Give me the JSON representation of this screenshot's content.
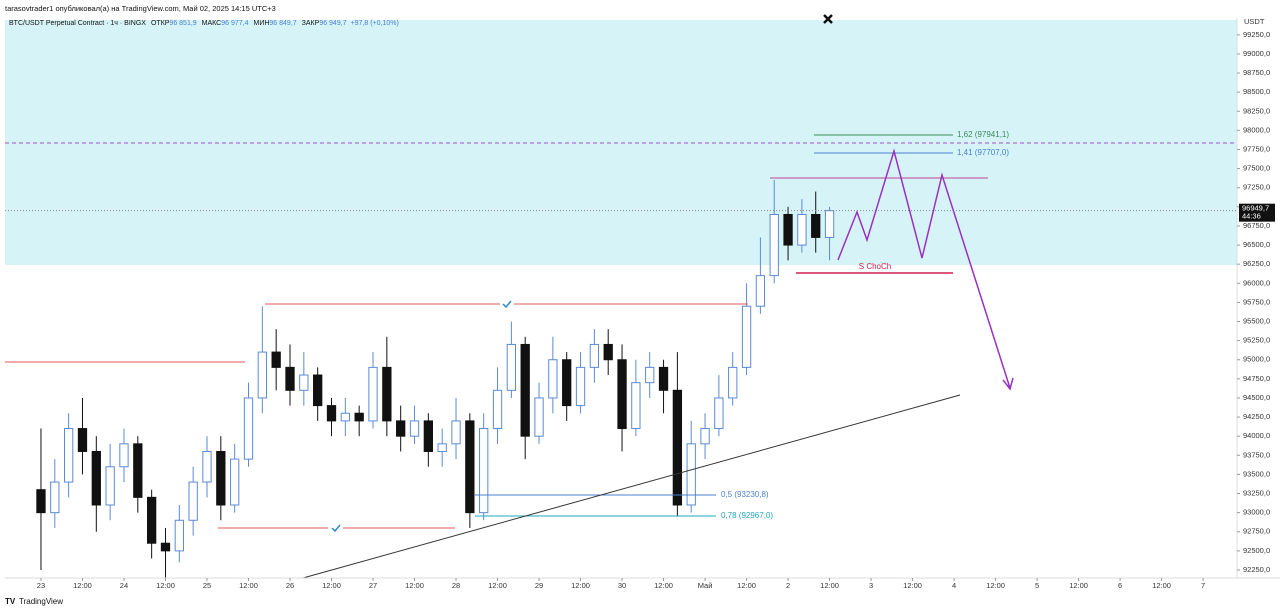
{
  "header": {
    "attribution": "tarasovtrader1 опубликовал(а) на TradingView.com, Май 02, 2025 14:15 UTC+3",
    "symbol": "BTC/USDT Perpetual Contract · 1ч · BINGX",
    "legend": [
      {
        "label": "ОТКР",
        "value": "96 851,9"
      },
      {
        "label": "МАКС",
        "value": "96 977,4"
      },
      {
        "label": "МИН",
        "value": "96 849,7"
      },
      {
        "label": "ЗАКР",
        "value": "96 949,7"
      }
    ],
    "change": "+97,8 (+0,10%)"
  },
  "chart_data": {
    "type": "candlestick",
    "y_axis_label": "USDT",
    "up_color": "#5b8ad6",
    "down_color": "#111111",
    "x": [
      0,
      4,
      8,
      12,
      16,
      20,
      24,
      28,
      32,
      36,
      40,
      44,
      48,
      52,
      56,
      60,
      64,
      68,
      72,
      76,
      80,
      84,
      88,
      92,
      96,
      100,
      104,
      108,
      112,
      116,
      120,
      124,
      128,
      132,
      136,
      140,
      144,
      148,
      152,
      156,
      160,
      164,
      168,
      172,
      176,
      180,
      184,
      188,
      192,
      196,
      200,
      204,
      208,
      212,
      216,
      220,
      224,
      228
    ],
    "open": [
      93300,
      93000,
      93400,
      94100,
      93800,
      93100,
      93600,
      93900,
      93200,
      92600,
      92500,
      92900,
      93400,
      93800,
      93100,
      93700,
      94500,
      95100,
      94900,
      94600,
      94800,
      94400,
      94200,
      94300,
      94200,
      94900,
      94200,
      94000,
      94200,
      93800,
      93900,
      94200,
      93000,
      94100,
      94600,
      95200,
      94000,
      94500,
      95000,
      94400,
      94900,
      95200,
      95000,
      94100,
      94700,
      94900,
      94600,
      93100,
      93900,
      94100,
      94500,
      94900,
      95700,
      96100,
      96900,
      96500,
      96900,
      96600
    ],
    "high": [
      94100,
      93700,
      94300,
      94500,
      94000,
      93900,
      94100,
      94000,
      93300,
      92800,
      93100,
      93600,
      94000,
      94000,
      93900,
      94700,
      95700,
      95400,
      95200,
      95100,
      94900,
      94500,
      94500,
      94400,
      95100,
      95300,
      94400,
      94400,
      94300,
      94100,
      94500,
      94300,
      94300,
      94900,
      95500,
      95300,
      94700,
      95300,
      95100,
      95100,
      95400,
      95400,
      95200,
      95000,
      95100,
      95000,
      95100,
      94200,
      94300,
      94800,
      95100,
      96000,
      96600,
      97350,
      97000,
      97100,
      97200,
      97000
    ],
    "low": [
      92250,
      92800,
      93200,
      93500,
      92750,
      92900,
      93400,
      93000,
      92400,
      92150,
      92350,
      92700,
      93200,
      92900,
      93000,
      93600,
      94300,
      94600,
      94400,
      94400,
      94200,
      94000,
      94000,
      94000,
      94100,
      94000,
      93800,
      93900,
      93600,
      93600,
      93700,
      92800,
      92900,
      93900,
      94500,
      93700,
      93900,
      94300,
      94200,
      94300,
      94700,
      94800,
      93800,
      94000,
      94500,
      94300,
      92950,
      93000,
      93700,
      94000,
      94400,
      94800,
      95600,
      96000,
      96300,
      96400,
      96400,
      96300
    ],
    "close": [
      93000,
      93400,
      94100,
      93800,
      93100,
      93600,
      93900,
      93200,
      92600,
      92500,
      92900,
      93400,
      93800,
      93100,
      93700,
      94500,
      95100,
      94900,
      94600,
      94800,
      94400,
      94200,
      94300,
      94200,
      94900,
      94200,
      94000,
      94200,
      93800,
      93900,
      94200,
      93000,
      94100,
      94600,
      95200,
      94000,
      94500,
      95000,
      94400,
      94900,
      95200,
      95000,
      94100,
      94700,
      94900,
      94600,
      93100,
      93900,
      94100,
      94500,
      94900,
      95700,
      96100,
      96900,
      96500,
      96900,
      96600,
      96949.7
    ],
    "last_price_label": "96949,7",
    "countdown": "44:36",
    "xlim": [
      -10.4,
      345.8
    ],
    "xticks": [
      {
        "value": 0,
        "label": "23"
      },
      {
        "value": 12,
        "label": "12:00"
      },
      {
        "value": 24,
        "label": "24"
      },
      {
        "value": 36,
        "label": "12:00"
      },
      {
        "value": 48,
        "label": "25"
      },
      {
        "value": 60,
        "label": "12:00"
      },
      {
        "value": 72,
        "label": "26"
      },
      {
        "value": 84,
        "label": "12:00"
      },
      {
        "value": 96,
        "label": "27"
      },
      {
        "value": 108,
        "label": "12:00"
      },
      {
        "value": 120,
        "label": "28"
      },
      {
        "value": 132,
        "label": "12:00"
      },
      {
        "value": 144,
        "label": "29"
      },
      {
        "value": 156,
        "label": "12:00"
      },
      {
        "value": 168,
        "label": "30"
      },
      {
        "value": 180,
        "label": "12:00"
      },
      {
        "value": 192,
        "label": "Май"
      },
      {
        "value": 204,
        "label": "12:00"
      },
      {
        "value": 216,
        "label": "2"
      },
      {
        "value": 228,
        "label": "12:00"
      },
      {
        "value": 240,
        "label": "3"
      },
      {
        "value": 252,
        "label": "12:00"
      },
      {
        "value": 264,
        "label": "4"
      },
      {
        "value": 276,
        "label": "12:00"
      },
      {
        "value": 288,
        "label": "5"
      },
      {
        "value": 300,
        "label": "12:00"
      },
      {
        "value": 312,
        "label": "6"
      },
      {
        "value": 324,
        "label": "12:00"
      },
      {
        "value": 336,
        "label": "7"
      }
    ],
    "ylim": [
      92145,
      99470
    ],
    "yticks": [
      {
        "value": 92250,
        "label": "92250,0"
      },
      {
        "value": 92500,
        "label": "92500,0"
      },
      {
        "value": 92750,
        "label": "92750,0"
      },
      {
        "value": 93000,
        "label": "93000,0"
      },
      {
        "value": 93250,
        "label": "93250,0"
      },
      {
        "value": 93500,
        "label": "93500,0"
      },
      {
        "value": 93750,
        "label": "93750,0"
      },
      {
        "value": 94000,
        "label": "94000,0"
      },
      {
        "value": 94250,
        "label": "94250,0"
      },
      {
        "value": 94500,
        "label": "94500,0"
      },
      {
        "value": 94750,
        "label": "94750,0"
      },
      {
        "value": 95000,
        "label": "95000,0"
      },
      {
        "value": 95250,
        "label": "95250,0"
      },
      {
        "value": 95500,
        "label": "95500,0"
      },
      {
        "value": 95750,
        "label": "95750,0"
      },
      {
        "value": 96000,
        "label": "96000,0"
      },
      {
        "value": 96250,
        "label": "96250,0"
      },
      {
        "value": 96500,
        "label": "96500,0"
      },
      {
        "value": 96750,
        "label": "96750,0"
      },
      {
        "value": 97000,
        "label": "97000,0"
      },
      {
        "value": 97250,
        "label": "97250,0"
      },
      {
        "value": 97500,
        "label": "97500,0"
      },
      {
        "value": 97750,
        "label": "97750,0"
      },
      {
        "value": 98000,
        "label": "98000,0"
      },
      {
        "value": 98250,
        "label": "98250,0"
      },
      {
        "value": 98500,
        "label": "98500,0"
      },
      {
        "value": 98750,
        "label": "98750,0"
      },
      {
        "value": 99000,
        "label": "99000,0"
      },
      {
        "value": 99250,
        "label": "99250,0"
      }
    ]
  },
  "annotations": {
    "fib_162": "1,62 (97941,1)",
    "fib_141": "1,41 (97707,0)",
    "fib_05": "0,5 (93230,8)",
    "fib_078": "0,78 (92967,0)",
    "choch": "S ChoCh"
  },
  "footer": {
    "brand": "TradingView"
  }
}
